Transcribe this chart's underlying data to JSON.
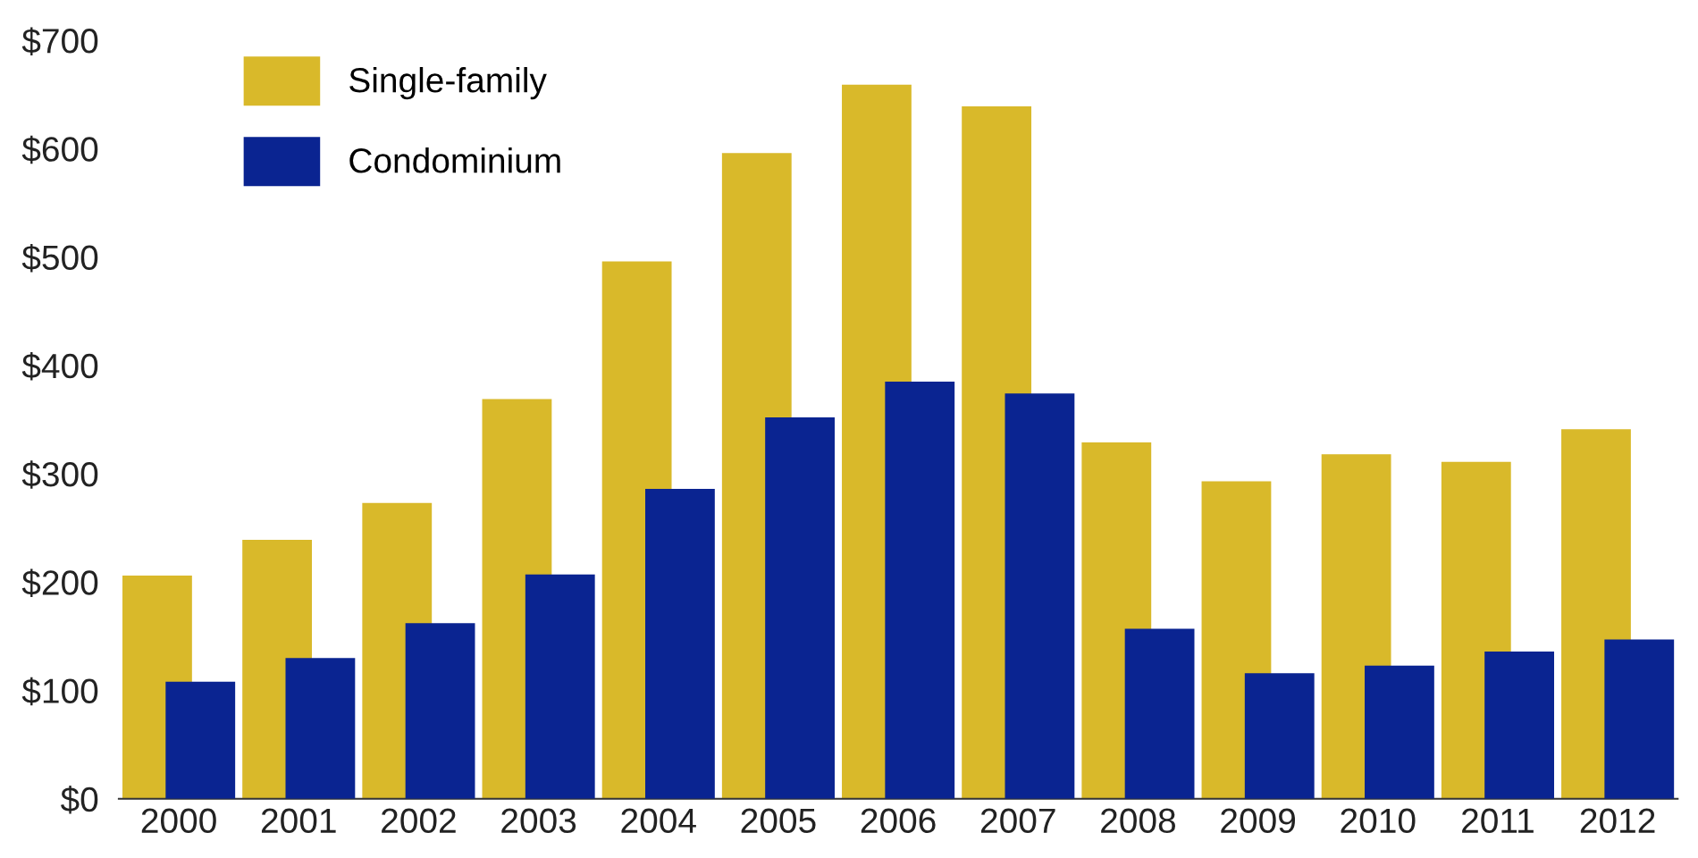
{
  "chart_data": {
    "type": "bar",
    "categories": [
      "2000",
      "2001",
      "2002",
      "2003",
      "2004",
      "2005",
      "2006",
      "2007",
      "2008",
      "2009",
      "2010",
      "2011",
      "2012"
    ],
    "series": [
      {
        "name": "Single-family",
        "color": "#d9b92a",
        "values": [
          206,
          239,
          273,
          369,
          496,
          596,
          659,
          639,
          329,
          293,
          318,
          311,
          341
        ]
      },
      {
        "name": "Condominium",
        "color": "#0a2491",
        "values": [
          108,
          130,
          162,
          207,
          286,
          352,
          385,
          374,
          157,
          116,
          123,
          136,
          147
        ]
      }
    ],
    "ylim": [
      0,
      700
    ],
    "yticks": [
      {
        "value": 0,
        "label": "$0"
      },
      {
        "value": 100,
        "label": "$100"
      },
      {
        "value": 200,
        "label": "$200"
      },
      {
        "value": 300,
        "label": "$300"
      },
      {
        "value": 400,
        "label": "$400"
      },
      {
        "value": 500,
        "label": "$500"
      },
      {
        "value": 600,
        "label": "$600"
      },
      {
        "value": 700,
        "label": "$700"
      }
    ],
    "grid": false,
    "legend": "top left"
  }
}
